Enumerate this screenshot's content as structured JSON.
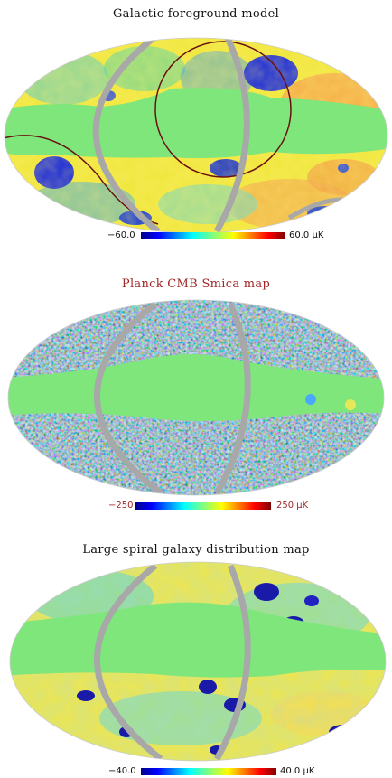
{
  "panels": [
    {
      "title": "Galactic foreground model",
      "title_color": "#111111",
      "colorbar": {
        "min_label": "−60.0",
        "max_label": "60.0",
        "unit": "μK"
      }
    },
    {
      "title": "Planck CMB Smica map",
      "title_color": "#a02828",
      "colorbar": {
        "min_label": "−250",
        "max_label": "250",
        "unit": "μK"
      }
    },
    {
      "title": "Large spiral galaxy distribution map",
      "title_color": "#111111",
      "colorbar": {
        "min_label": "−40.0",
        "max_label": "40.0",
        "unit": "μK"
      }
    }
  ],
  "colors": {
    "mask_green": "#7ee67a",
    "ring_gray": "#a8a8a8",
    "circle_dark_red": "#6a1010"
  }
}
